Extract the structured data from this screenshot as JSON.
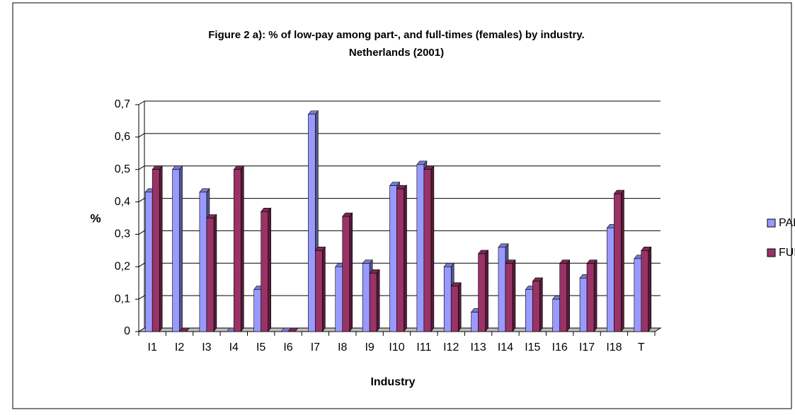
{
  "chart_data": {
    "type": "bar3d",
    "title": [
      "Figure 2 a): % of low-pay among part-, and full-times (females) by industry.",
      "Netherlands (2001)"
    ],
    "x_label": "Industry",
    "y_label": "%",
    "categories": [
      "I1",
      "I2",
      "I3",
      "I4",
      "I5",
      "I6",
      "I7",
      "I8",
      "I9",
      "I10",
      "I11",
      "I12",
      "I13",
      "I14",
      "I15",
      "I16",
      "I17",
      "I18",
      "T"
    ],
    "series": [
      {
        "name": "PART",
        "color": "#9999ff",
        "values": [
          0.43,
          0.5,
          0.43,
          0,
          0.13,
          0,
          0.67,
          0.2,
          0.21,
          0.45,
          0.515,
          0.2,
          0.06,
          0.26,
          0.13,
          0.1,
          0.165,
          0.32,
          0.225
        ]
      },
      {
        "name": "FULL",
        "color": "#993366",
        "values": [
          0.5,
          0,
          0.35,
          0.5,
          0.37,
          0,
          0.25,
          0.355,
          0.18,
          0.44,
          0.5,
          0.14,
          0.24,
          0.21,
          0.155,
          0.21,
          0.21,
          0.425,
          0.25
        ]
      }
    ],
    "ylim": [
      0,
      0.7
    ],
    "yticks": [
      0,
      {
        "value": 0.1,
        "label": "0,1"
      },
      {
        "value": 0.2,
        "label": "0,2"
      },
      {
        "value": 0.3,
        "label": "0,3"
      },
      {
        "value": 0.4,
        "label": "0,4"
      },
      {
        "value": 0.5,
        "label": "0,5"
      },
      {
        "value": 0.6,
        "label": "0,6"
      },
      {
        "value": 0.7,
        "label": "0,7"
      }
    ],
    "grid": true,
    "legend": "right"
  }
}
